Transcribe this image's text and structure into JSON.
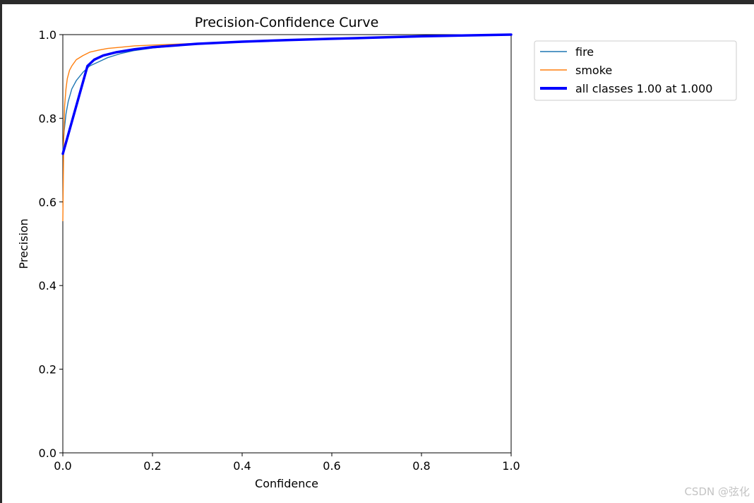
{
  "chart_data": {
    "type": "line",
    "title": "Precision-Confidence Curve",
    "xlabel": "Confidence",
    "ylabel": "Precision",
    "xlim": [
      0,
      1
    ],
    "ylim": [
      0,
      1
    ],
    "xticks": [
      "0.0",
      "0.2",
      "0.4",
      "0.6",
      "0.8",
      "1.0"
    ],
    "yticks": [
      "0.0",
      "0.2",
      "0.4",
      "0.6",
      "0.8",
      "1.0"
    ],
    "grid": false,
    "legend_position": "outside top-right",
    "series": [
      {
        "name": "fire",
        "color": "#1f77b4",
        "style": "thin",
        "points": [
          [
            0.0,
            0.72
          ],
          [
            0.003,
            0.77
          ],
          [
            0.007,
            0.81
          ],
          [
            0.012,
            0.84
          ],
          [
            0.02,
            0.87
          ],
          [
            0.03,
            0.89
          ],
          [
            0.045,
            0.91
          ],
          [
            0.06,
            0.925
          ],
          [
            0.08,
            0.935
          ],
          [
            0.1,
            0.945
          ],
          [
            0.13,
            0.955
          ],
          [
            0.16,
            0.962
          ],
          [
            0.2,
            0.968
          ],
          [
            0.25,
            0.973
          ],
          [
            0.3,
            0.977
          ],
          [
            0.4,
            0.982
          ],
          [
            0.5,
            0.986
          ],
          [
            0.6,
            0.99
          ],
          [
            0.7,
            0.993
          ],
          [
            0.8,
            0.996
          ],
          [
            0.9,
            0.998
          ],
          [
            1.0,
            1.0
          ]
        ]
      },
      {
        "name": "smoke",
        "color": "#ff7f0e",
        "style": "thin",
        "points": [
          [
            0.0,
            0.555
          ],
          [
            0.001,
            0.65
          ],
          [
            0.002,
            0.75
          ],
          [
            0.004,
            0.83
          ],
          [
            0.007,
            0.87
          ],
          [
            0.01,
            0.895
          ],
          [
            0.015,
            0.915
          ],
          [
            0.02,
            0.925
          ],
          [
            0.03,
            0.94
          ],
          [
            0.045,
            0.95
          ],
          [
            0.06,
            0.958
          ],
          [
            0.08,
            0.963
          ],
          [
            0.1,
            0.967
          ],
          [
            0.13,
            0.97
          ],
          [
            0.16,
            0.973
          ],
          [
            0.2,
            0.975
          ],
          [
            0.25,
            0.977
          ],
          [
            0.3,
            0.979
          ],
          [
            0.4,
            0.983
          ],
          [
            0.5,
            0.987
          ],
          [
            0.6,
            0.99
          ],
          [
            0.7,
            0.993
          ],
          [
            0.8,
            0.996
          ],
          [
            0.9,
            0.998
          ],
          [
            1.0,
            1.0
          ]
        ]
      },
      {
        "name": "all classes 1.00 at 1.000",
        "color": "#0000ff",
        "style": "thick",
        "points": [
          [
            0.0,
            0.715
          ],
          [
            0.055,
            0.925
          ],
          [
            0.07,
            0.94
          ],
          [
            0.09,
            0.95
          ],
          [
            0.12,
            0.958
          ],
          [
            0.16,
            0.965
          ],
          [
            0.2,
            0.97
          ],
          [
            0.3,
            0.978
          ],
          [
            0.4,
            0.983
          ],
          [
            0.5,
            0.987
          ],
          [
            0.6,
            0.99
          ],
          [
            0.7,
            0.993
          ],
          [
            0.8,
            0.996
          ],
          [
            0.9,
            0.998
          ],
          [
            1.0,
            1.0
          ]
        ]
      }
    ]
  },
  "watermark": "CSDN @弦化"
}
